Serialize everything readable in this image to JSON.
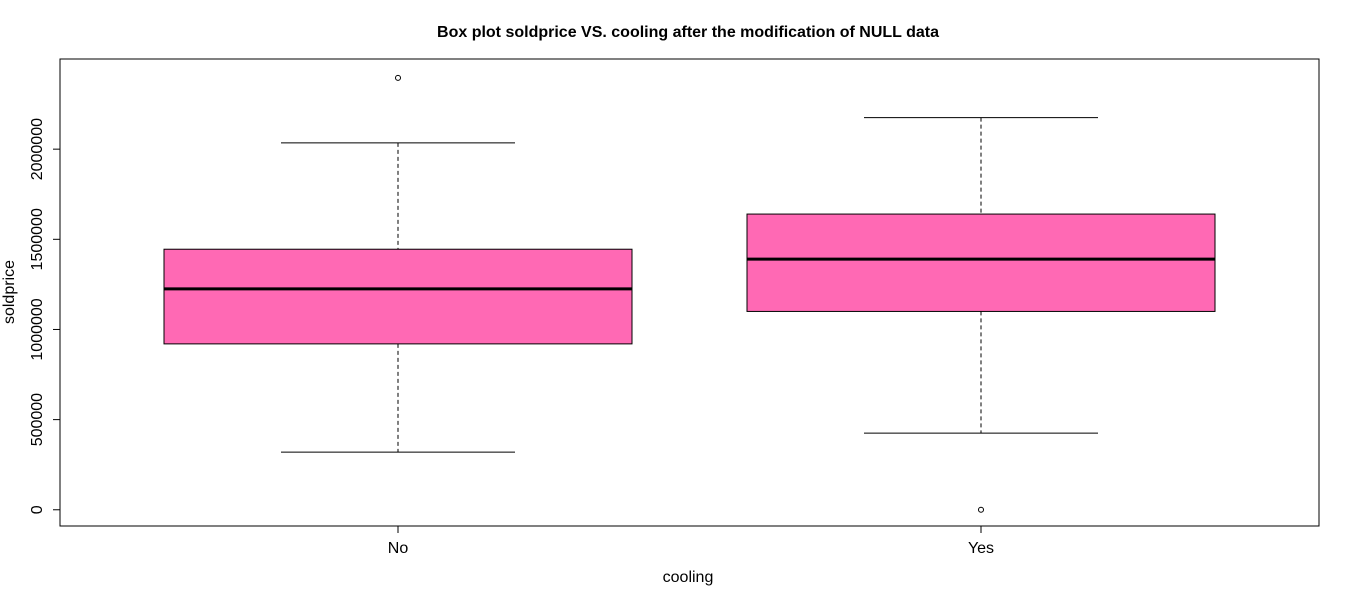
{
  "chart_data": {
    "type": "box",
    "title": "Box plot soldprice VS. cooling after the modification of NULL data",
    "xlabel": "cooling",
    "ylabel": "soldprice",
    "ylim": [
      -90000,
      2500000
    ],
    "y_ticks": [
      0,
      500000,
      1000000,
      1500000,
      2000000
    ],
    "y_tick_labels": [
      "0",
      "500000",
      "1000000",
      "1500000",
      "2000000"
    ],
    "categories": [
      "No",
      "Yes"
    ],
    "box_color": "#ff69b4",
    "grid": false,
    "boxes": [
      {
        "category": "No",
        "whisker_low": 320000,
        "q1": 920000,
        "median": 1225000,
        "q3": 1445000,
        "whisker_high": 2035000,
        "outliers": [
          2395000
        ]
      },
      {
        "category": "Yes",
        "whisker_low": 425000,
        "q1": 1100000,
        "median": 1390000,
        "q3": 1640000,
        "whisker_high": 2175000,
        "outliers": [
          0
        ]
      }
    ]
  }
}
